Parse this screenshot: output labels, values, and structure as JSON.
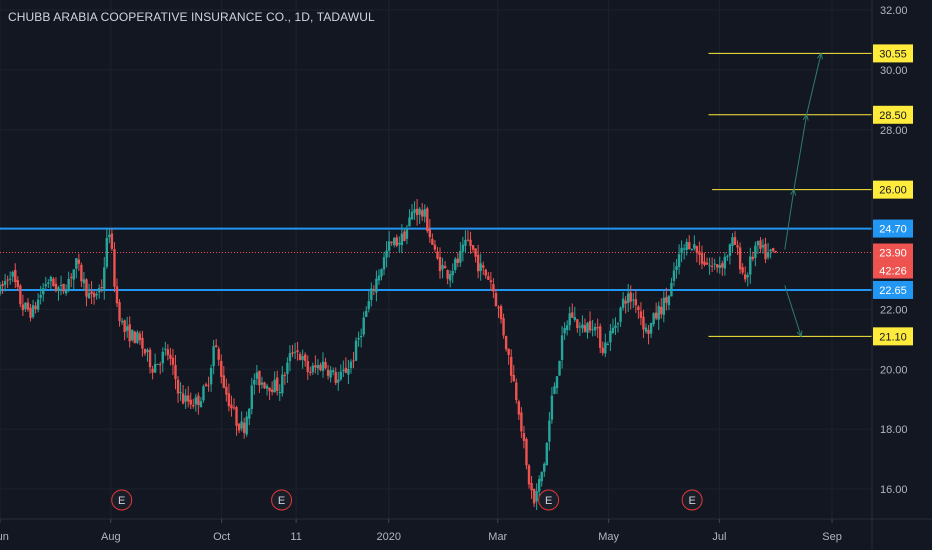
{
  "header": {
    "title": "CHUBB ARABIA COOPERATIVE INSURANCE CO., 1D, TADAWUL"
  },
  "colors": {
    "background": "#131722",
    "grid": "#1e222d",
    "axis_text": "#b2b5be",
    "up": "#26a69a",
    "down": "#ef5350",
    "resistance": "#2196f3",
    "target": "#ffeb3b",
    "arrow": "#2e7d6b",
    "earnings": "#e53935"
  },
  "chart_data": {
    "type": "candlestick",
    "title": "CHUBB ARABIA COOPERATIVE INSURANCE CO., 1D, TADAWUL",
    "ylim": [
      15.0,
      32.2
    ],
    "y_ticks": [
      {
        "value": 16,
        "label": "16.00"
      },
      {
        "value": 18,
        "label": "18.00"
      },
      {
        "value": 20,
        "label": "20.00"
      },
      {
        "value": 22,
        "label": "22.00"
      },
      {
        "value": 28,
        "label": "28.00"
      },
      {
        "value": 30,
        "label": "30.00"
      },
      {
        "value": 32,
        "label": "32.00"
      }
    ],
    "x_ticks": [
      {
        "label": "Jun",
        "day": 0
      },
      {
        "label": "Aug",
        "day": 61
      },
      {
        "label": "Oct",
        "day": 122
      },
      {
        "label": "11",
        "day": 163
      },
      {
        "label": "2020",
        "day": 214
      },
      {
        "label": "Mar",
        "day": 274
      },
      {
        "label": "May",
        "day": 335
      },
      {
        "label": "Jul",
        "day": 396
      },
      {
        "label": "Sep",
        "day": 458
      }
    ],
    "x_range_days": [
      0,
      480
    ],
    "horizontal_lines": [
      {
        "value": 24.7,
        "label": "24.70",
        "kind": "resistance",
        "full_width": true
      },
      {
        "value": 22.65,
        "label": "22.65",
        "kind": "resistance",
        "full_width": true
      },
      {
        "value": 23.9,
        "label": "23.90",
        "kind": "last-price",
        "full_width": true
      },
      {
        "value": 30.55,
        "label": "30.55",
        "kind": "target",
        "from_day": 390
      },
      {
        "value": 28.5,
        "label": "28.50",
        "kind": "target",
        "from_day": 390
      },
      {
        "value": 26.0,
        "label": "26.00",
        "kind": "target",
        "from_day": 392
      },
      {
        "value": 21.1,
        "label": "21.10",
        "kind": "target",
        "from_day": 390
      }
    ],
    "countdown_label": "42:26",
    "arrows": [
      {
        "points": [
          [
            432,
            24.0
          ],
          [
            437,
            26.0
          ],
          [
            444,
            28.5
          ],
          [
            452,
            30.55
          ]
        ]
      },
      {
        "points": [
          [
            432,
            22.8
          ],
          [
            441,
            21.1
          ]
        ]
      }
    ],
    "earnings_markers": [
      {
        "day": 67,
        "label": "E"
      },
      {
        "day": 155,
        "label": "E"
      },
      {
        "day": 302,
        "label": "E"
      },
      {
        "day": 381,
        "label": "E"
      }
    ],
    "price_path": [
      [
        0,
        22.6
      ],
      [
        6,
        23.3
      ],
      [
        12,
        22.1
      ],
      [
        18,
        21.9
      ],
      [
        26,
        23.0
      ],
      [
        34,
        22.6
      ],
      [
        42,
        23.5
      ],
      [
        50,
        22.3
      ],
      [
        56,
        22.8
      ],
      [
        60,
        24.8
      ],
      [
        64,
        22.3
      ],
      [
        68,
        21.3
      ],
      [
        76,
        21.0
      ],
      [
        84,
        20.1
      ],
      [
        92,
        20.6
      ],
      [
        100,
        19.0
      ],
      [
        108,
        18.9
      ],
      [
        114,
        19.4
      ],
      [
        118,
        20.9
      ],
      [
        124,
        19.3
      ],
      [
        130,
        18.3
      ],
      [
        134,
        18.0
      ],
      [
        140,
        19.7
      ],
      [
        148,
        19.5
      ],
      [
        154,
        19.4
      ],
      [
        162,
        20.8
      ],
      [
        170,
        19.9
      ],
      [
        178,
        20.2
      ],
      [
        186,
        19.6
      ],
      [
        194,
        20.3
      ],
      [
        200,
        21.6
      ],
      [
        206,
        22.8
      ],
      [
        214,
        24.1
      ],
      [
        222,
        24.4
      ],
      [
        228,
        25.4
      ],
      [
        234,
        25.1
      ],
      [
        240,
        23.7
      ],
      [
        246,
        23.2
      ],
      [
        252,
        23.6
      ],
      [
        258,
        24.3
      ],
      [
        264,
        23.4
      ],
      [
        270,
        23.0
      ],
      [
        276,
        21.6
      ],
      [
        282,
        19.8
      ],
      [
        286,
        18.6
      ],
      [
        290,
        16.6
      ],
      [
        294,
        15.5
      ],
      [
        300,
        17.0
      ],
      [
        304,
        19.1
      ],
      [
        310,
        21.1
      ],
      [
        314,
        21.9
      ],
      [
        320,
        21.3
      ],
      [
        326,
        21.6
      ],
      [
        332,
        20.7
      ],
      [
        338,
        21.4
      ],
      [
        344,
        22.4
      ],
      [
        350,
        22.3
      ],
      [
        356,
        21.2
      ],
      [
        362,
        21.9
      ],
      [
        368,
        22.4
      ],
      [
        374,
        23.8
      ],
      [
        380,
        24.3
      ],
      [
        386,
        23.7
      ],
      [
        392,
        23.4
      ],
      [
        398,
        23.6
      ],
      [
        404,
        24.3
      ],
      [
        410,
        23.0
      ],
      [
        416,
        24.1
      ],
      [
        422,
        23.8
      ],
      [
        428,
        23.9
      ]
    ]
  }
}
